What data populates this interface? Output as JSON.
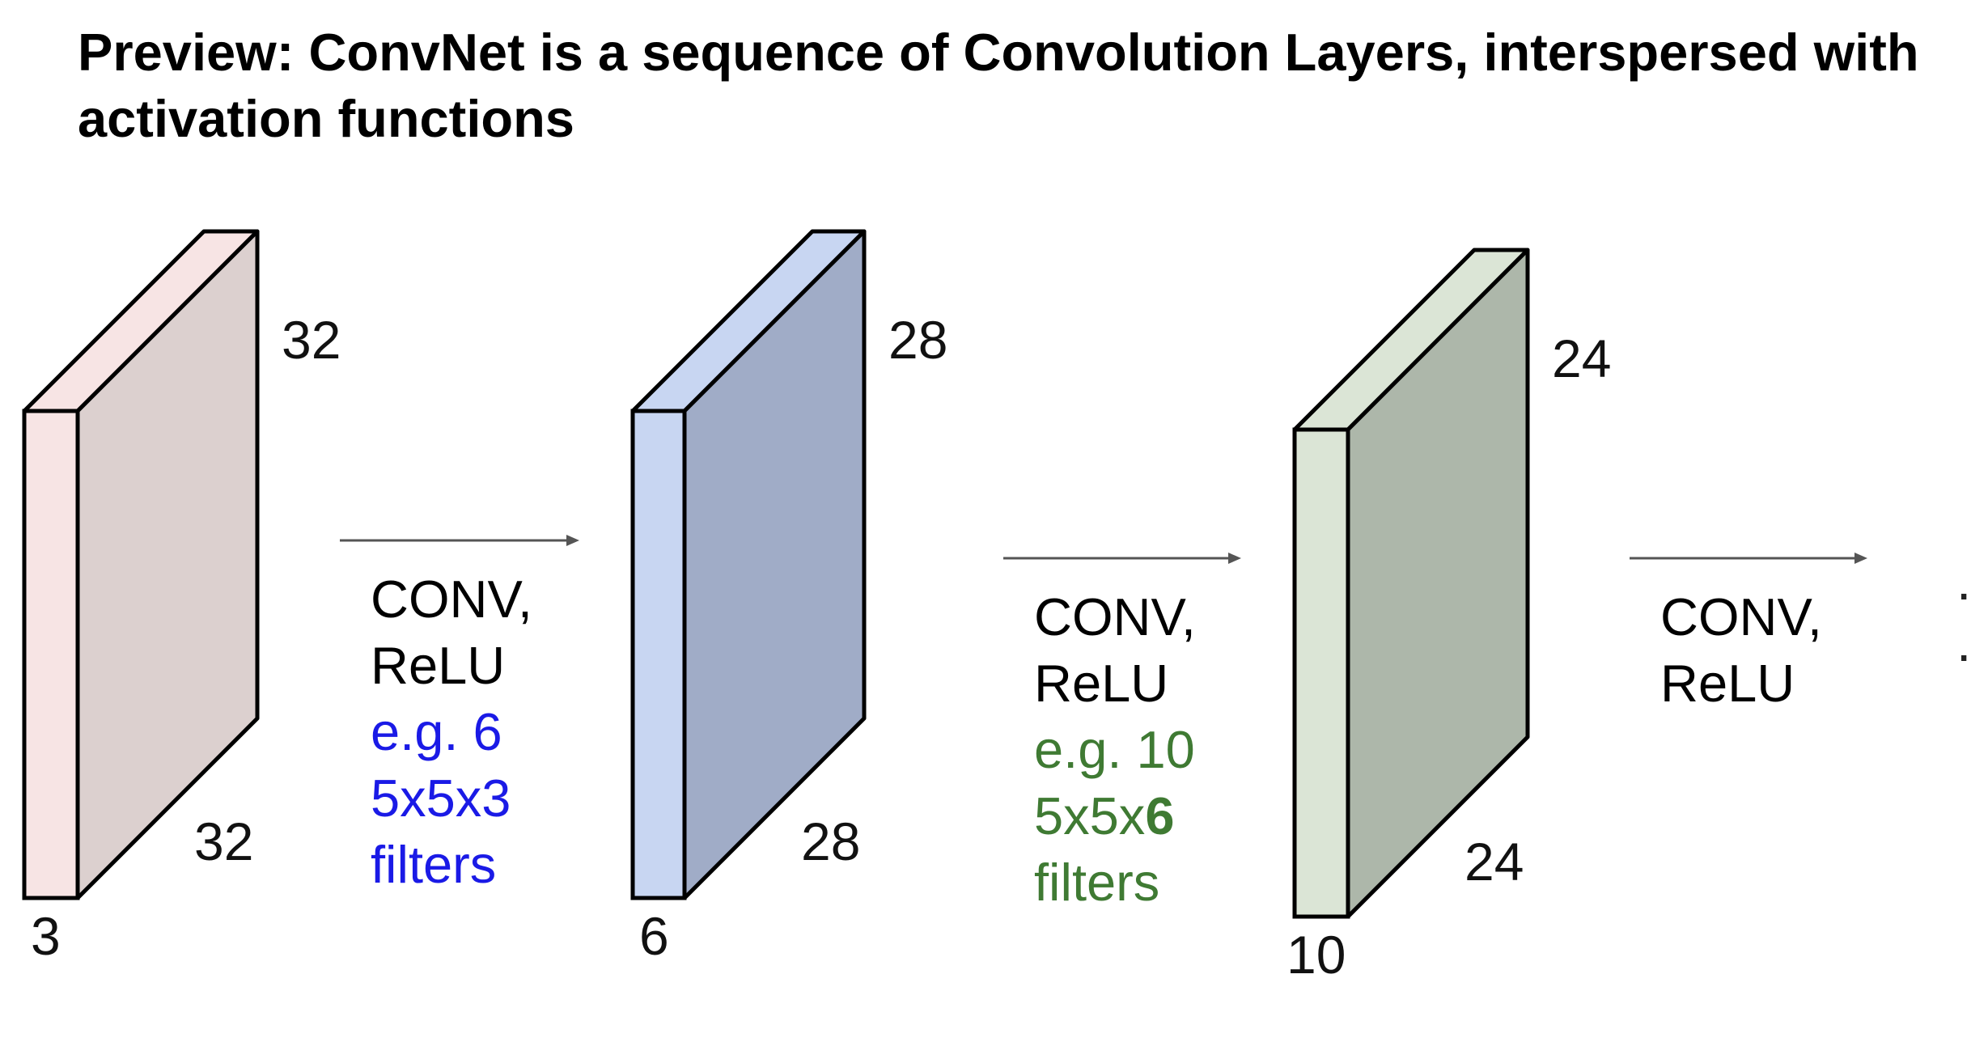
{
  "heading": {
    "prefix": "Preview:",
    "text": "ConvNet is a sequence of Convolution Layers, interspersed with activation functions"
  },
  "volumes": [
    {
      "depth": "3",
      "height": "32",
      "width": "32",
      "front_color": "#f7e4e4",
      "side_color": "#dcd0cf"
    },
    {
      "depth": "6",
      "height": "28",
      "width": "28",
      "front_color": "#c8d6f2",
      "side_color": "#a0acc7"
    },
    {
      "depth": "10",
      "height": "24",
      "width": "24",
      "front_color": "#dbe5d6",
      "side_color": "#adb7aa"
    }
  ],
  "operations": [
    {
      "lines": [
        "CONV,",
        "ReLU"
      ],
      "note_lines": [
        "e.g. 6",
        "5x5x3",
        "filters"
      ],
      "note_color": "#1a1ae6"
    },
    {
      "lines": [
        "CONV,",
        "ReLU"
      ],
      "note_lines": [
        "e.g. 10",
        "5x5x",
        "filters"
      ],
      "note_emphasis": "6",
      "note_color": "#3f7a33"
    },
    {
      "lines": [
        "CONV,",
        "ReLU"
      ]
    }
  ],
  "continuation": ". ."
}
